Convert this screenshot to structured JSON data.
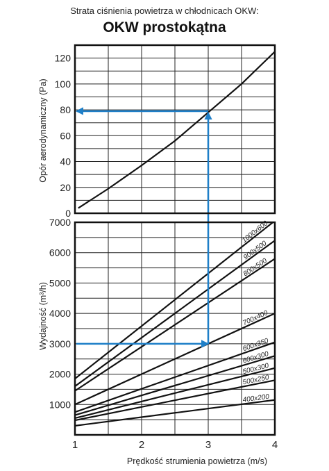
{
  "chart_data": {
    "type": "line",
    "supertitle": "Strata ciśnienia powietrza w chłodnicach OKW:",
    "title": "OKW prostokątna",
    "xlabel": "Prędkość strumienia powietrza (m/s)",
    "xlim": [
      1,
      4
    ],
    "x_ticks": [
      "1",
      "2",
      "3",
      "4"
    ],
    "grid": true,
    "top_panel": {
      "ylabel": "Opór aerodynamiczny (Pa)",
      "ylim": [
        0,
        130
      ],
      "y_ticks": [
        "0",
        "20",
        "40",
        "60",
        "80",
        "100",
        "120"
      ],
      "series": [
        {
          "x": [
            1.05,
            1.5,
            2,
            2.5,
            3,
            3.5,
            4.0
          ],
          "y": [
            4,
            19,
            37,
            56,
            78,
            100,
            125
          ]
        }
      ]
    },
    "bottom_panel": {
      "ylabel": "Wydajność (m³/h)",
      "ylim": [
        0,
        7000
      ],
      "y_ticks": [
        "1000",
        "2000",
        "3000",
        "4000",
        "5000",
        "6000",
        "7000"
      ],
      "series": [
        {
          "name": "1000x600",
          "x": [
            1,
            4
          ],
          "y": [
            1850,
            7050
          ]
        },
        {
          "name": "900x500",
          "x": [
            1,
            4
          ],
          "y": [
            1600,
            6400
          ]
        },
        {
          "name": "800x500",
          "x": [
            1,
            4
          ],
          "y": [
            1450,
            5800
          ]
        },
        {
          "name": "700x400",
          "x": [
            1,
            4
          ],
          "y": [
            1000,
            4000
          ]
        },
        {
          "name": "600x350",
          "x": [
            1,
            4
          ],
          "y": [
            750,
            3050
          ]
        },
        {
          "name": "600x300",
          "x": [
            1,
            4
          ],
          "y": [
            650,
            2600
          ]
        },
        {
          "name": "500x300",
          "x": [
            1,
            4
          ],
          "y": [
            550,
            2200
          ]
        },
        {
          "name": "500x250",
          "x": [
            1,
            4
          ],
          "y": [
            480,
            1800
          ]
        },
        {
          "name": "400x200",
          "x": [
            1,
            4
          ],
          "y": [
            300,
            1150
          ]
        }
      ]
    },
    "annotation": {
      "x": 3,
      "flow": 3000,
      "pressure": 79,
      "color": "#1e7fc8"
    }
  }
}
